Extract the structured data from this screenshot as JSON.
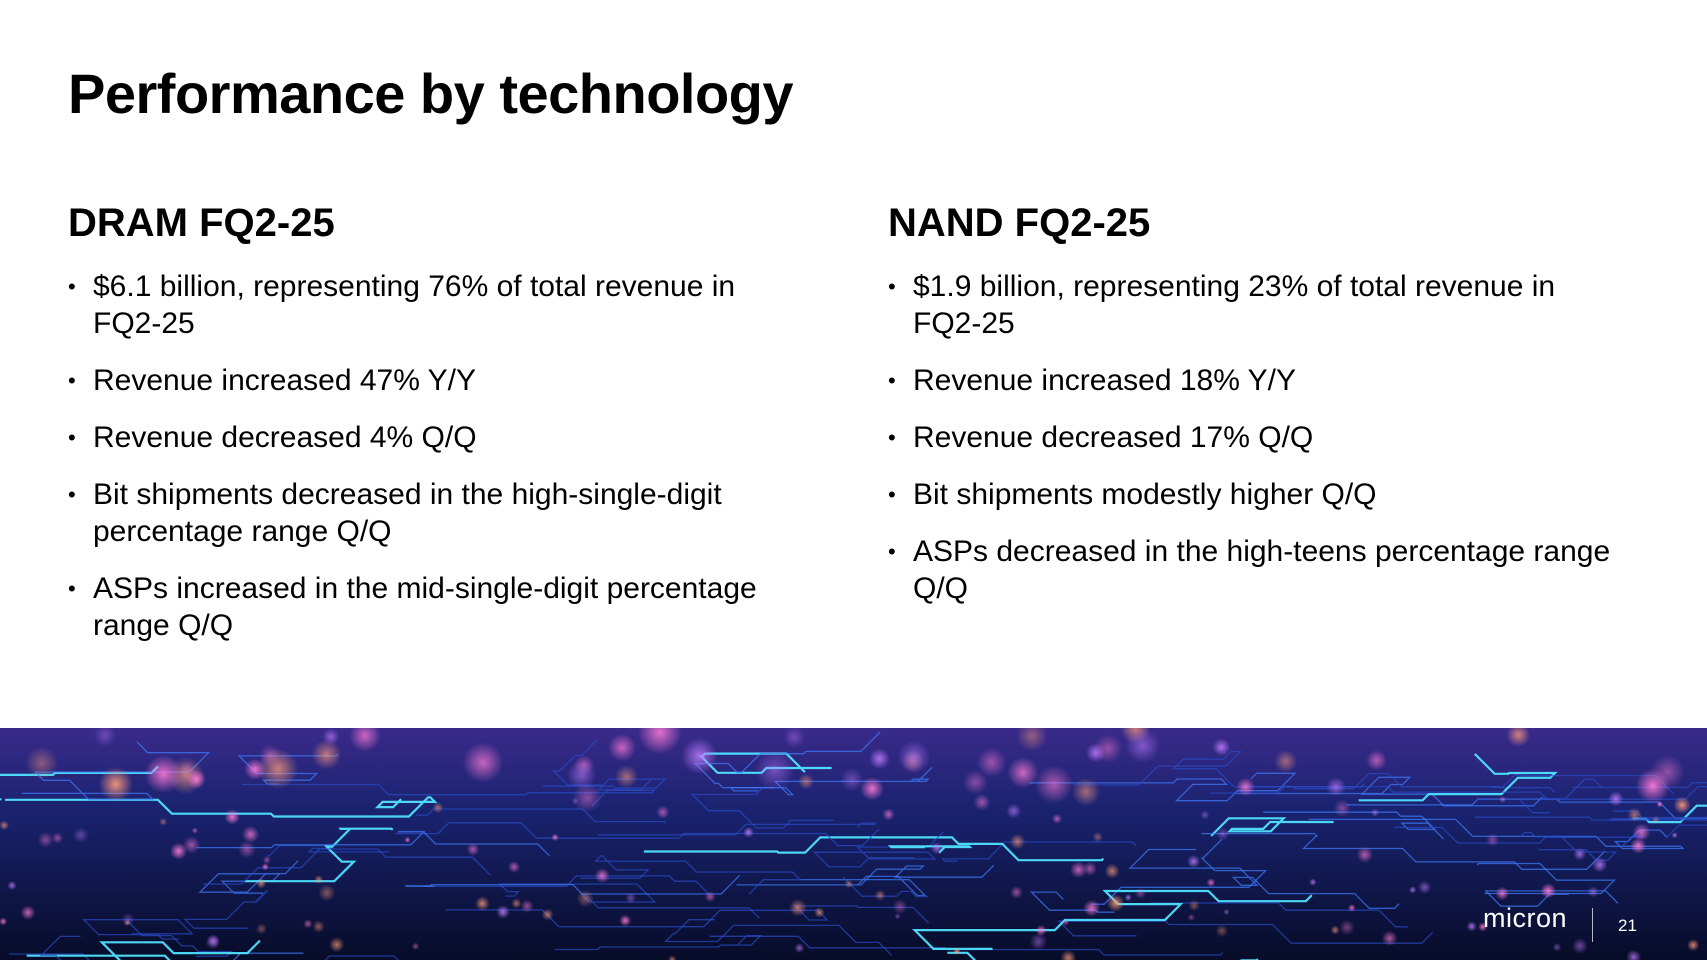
{
  "slide": {
    "title": "Performance by technology",
    "page_number": "21",
    "logo_text": "micron"
  },
  "columns": [
    {
      "heading": "DRAM FQ2-25",
      "bullets": [
        "$6.1 billion, representing 76% of total revenue in FQ2-25",
        "Revenue increased 47% Y/Y",
        "Revenue decreased 4% Q/Q",
        "Bit shipments decreased in the high-single-digit percentage range Q/Q",
        "ASPs increased in the mid-single-digit percentage range Q/Q"
      ]
    },
    {
      "heading": "NAND FQ2-25",
      "bullets": [
        "$1.9 billion, representing 23% of total revenue in FQ2-25",
        "Revenue increased 18% Y/Y",
        "Revenue decreased 17% Q/Q",
        "Bit shipments modestly higher Q/Q",
        "ASPs decreased in the high-teens percentage range Q/Q"
      ]
    }
  ],
  "banner": {
    "image": "circuit-board-graphic",
    "colors": {
      "base": "#0a1030",
      "trace_blue": "#2f6bff",
      "trace_cyan": "#4fe3ff",
      "glow_pink": "#ff5fc8",
      "glow_purple": "#b24bff"
    }
  },
  "bullet_glyph": "•"
}
